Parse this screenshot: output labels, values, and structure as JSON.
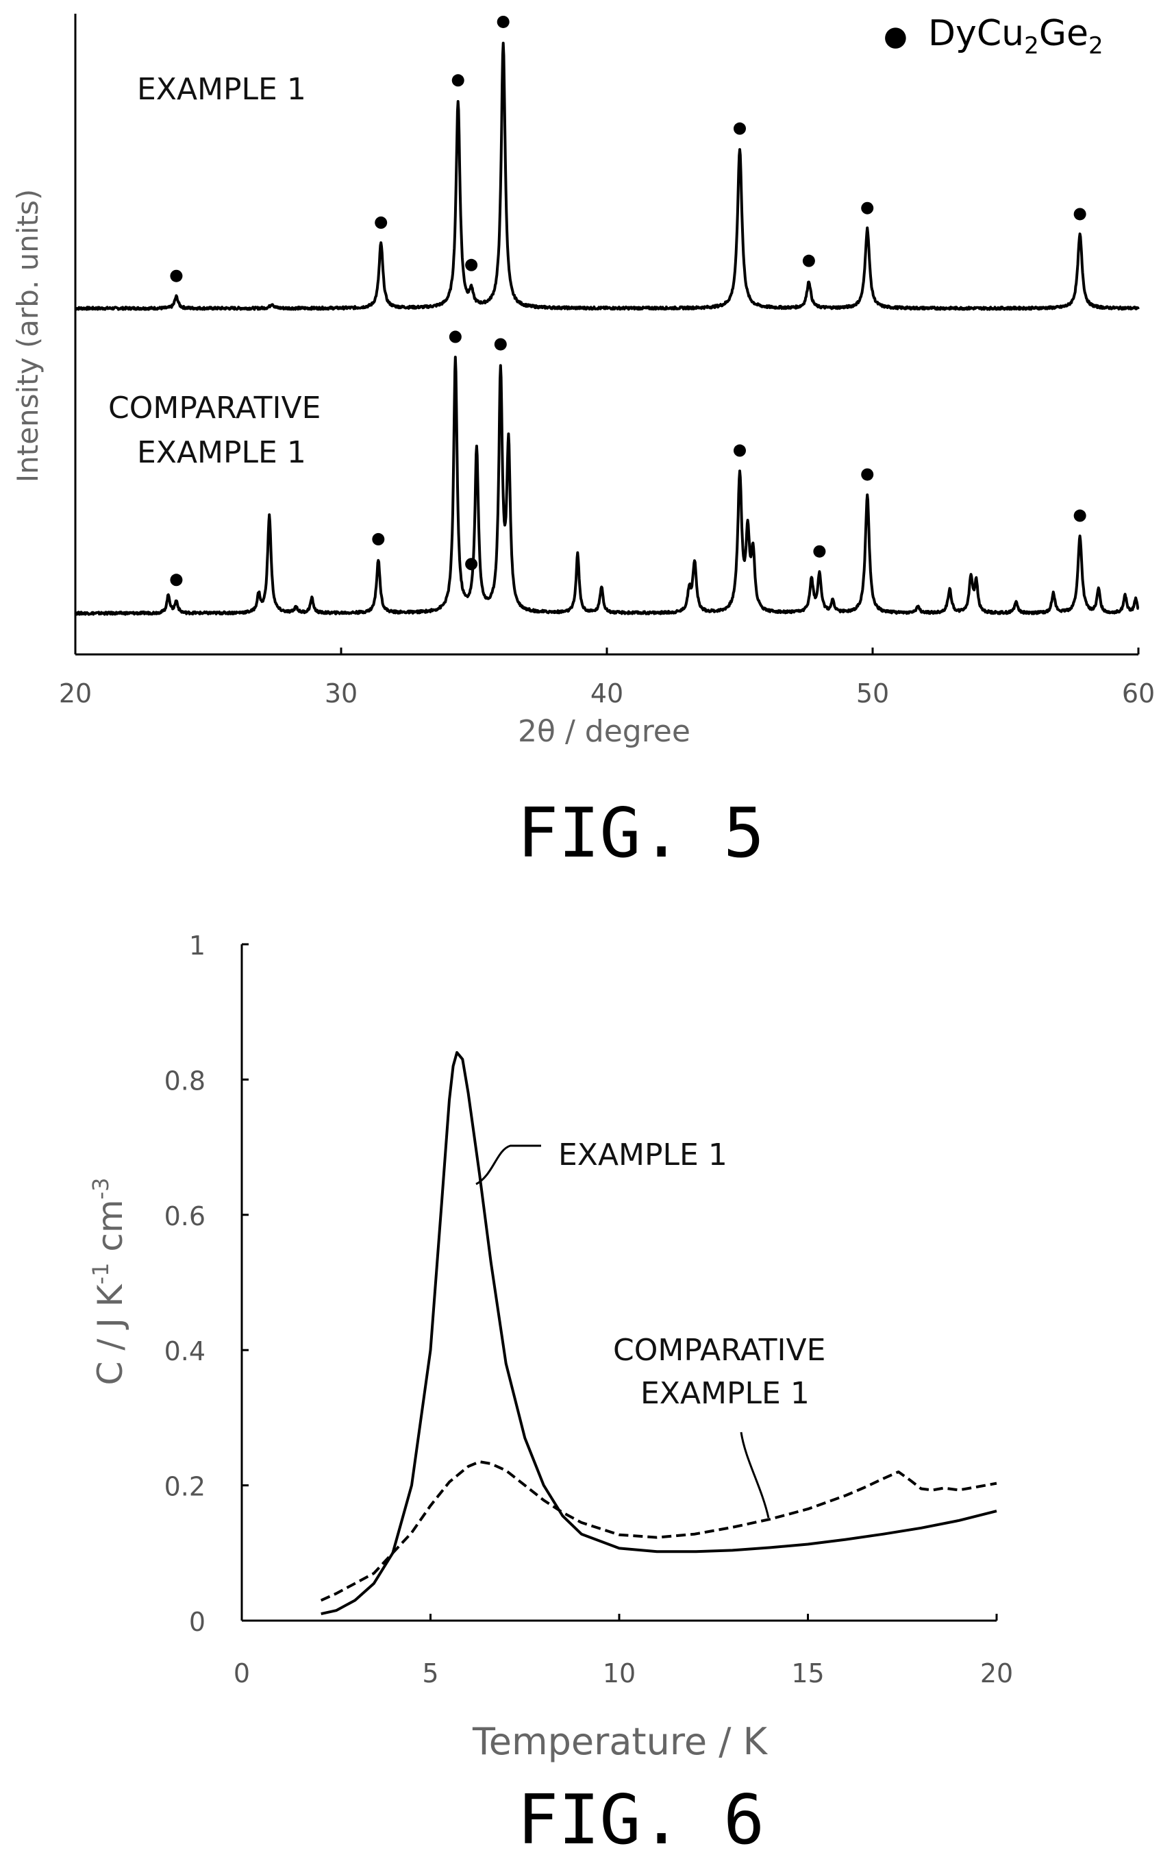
{
  "chart_data": [
    {
      "type": "line",
      "figure_label": "FIG. 5",
      "xlabel": "2θ / degree",
      "ylabel": "Intensity (arb. units)",
      "xlim": [
        20,
        60
      ],
      "xticks": [
        "20",
        "30",
        "40",
        "50",
        "60"
      ],
      "legend": {
        "marker": "●",
        "name": "DyCu",
        "sub1": "2",
        "mid": "Ge",
        "sub2": "2"
      },
      "series": [
        {
          "name": "EXAMPLE 1",
          "baseline": 0,
          "peaks": [
            {
              "x": 23.8,
              "y": 0.04,
              "w": 0.08
            },
            {
              "x": 27.4,
              "y": 0.015,
              "w": 0.08
            },
            {
              "x": 31.5,
              "y": 0.22,
              "w": 0.09
            },
            {
              "x": 34.4,
              "y": 0.7,
              "w": 0.09
            },
            {
              "x": 34.9,
              "y": 0.05,
              "w": 0.08
            },
            {
              "x": 36.1,
              "y": 0.9,
              "w": 0.09
            },
            {
              "x": 45.0,
              "y": 0.54,
              "w": 0.1
            },
            {
              "x": 47.6,
              "y": 0.09,
              "w": 0.09
            },
            {
              "x": 49.8,
              "y": 0.27,
              "w": 0.1
            },
            {
              "x": 57.8,
              "y": 0.25,
              "w": 0.1
            }
          ],
          "marked_peaks": [
            23.8,
            31.5,
            34.4,
            34.9,
            36.1,
            45.0,
            47.6,
            49.8,
            57.8
          ],
          "label": [
            "EXAMPLE 1"
          ]
        },
        {
          "name": "COMPARATIVE EXAMPLE 1",
          "baseline": 0,
          "peaks": [
            {
              "x": 23.5,
              "y": 0.06,
              "w": 0.07
            },
            {
              "x": 23.8,
              "y": 0.04,
              "w": 0.07
            },
            {
              "x": 26.9,
              "y": 0.06,
              "w": 0.07
            },
            {
              "x": 27.3,
              "y": 0.33,
              "w": 0.08
            },
            {
              "x": 28.3,
              "y": 0.02,
              "w": 0.07
            },
            {
              "x": 28.9,
              "y": 0.05,
              "w": 0.07
            },
            {
              "x": 31.4,
              "y": 0.18,
              "w": 0.08
            },
            {
              "x": 34.3,
              "y": 0.86,
              "w": 0.08
            },
            {
              "x": 35.1,
              "y": 0.55,
              "w": 0.08
            },
            {
              "x": 36.0,
              "y": 0.8,
              "w": 0.08
            },
            {
              "x": 36.3,
              "y": 0.55,
              "w": 0.08
            },
            {
              "x": 38.9,
              "y": 0.2,
              "w": 0.07
            },
            {
              "x": 39.8,
              "y": 0.09,
              "w": 0.07
            },
            {
              "x": 43.1,
              "y": 0.07,
              "w": 0.08
            },
            {
              "x": 43.3,
              "y": 0.17,
              "w": 0.08
            },
            {
              "x": 45.0,
              "y": 0.46,
              "w": 0.09
            },
            {
              "x": 45.3,
              "y": 0.25,
              "w": 0.08
            },
            {
              "x": 45.5,
              "y": 0.19,
              "w": 0.08
            },
            {
              "x": 47.7,
              "y": 0.11,
              "w": 0.08
            },
            {
              "x": 48.0,
              "y": 0.13,
              "w": 0.08
            },
            {
              "x": 48.5,
              "y": 0.04,
              "w": 0.07
            },
            {
              "x": 49.8,
              "y": 0.4,
              "w": 0.09
            },
            {
              "x": 51.7,
              "y": 0.02,
              "w": 0.08
            },
            {
              "x": 52.9,
              "y": 0.08,
              "w": 0.08
            },
            {
              "x": 53.7,
              "y": 0.12,
              "w": 0.08
            },
            {
              "x": 53.9,
              "y": 0.1,
              "w": 0.07
            },
            {
              "x": 55.4,
              "y": 0.04,
              "w": 0.07
            },
            {
              "x": 56.8,
              "y": 0.07,
              "w": 0.07
            },
            {
              "x": 57.8,
              "y": 0.26,
              "w": 0.09
            },
            {
              "x": 58.5,
              "y": 0.08,
              "w": 0.07
            },
            {
              "x": 59.5,
              "y": 0.06,
              "w": 0.07
            },
            {
              "x": 59.9,
              "y": 0.05,
              "w": 0.06
            }
          ],
          "marked_peaks": [
            23.8,
            31.4,
            34.3,
            34.9,
            36.0,
            45.0,
            48.0,
            49.8,
            57.8
          ],
          "label": [
            "COMPARATIVE",
            "EXAMPLE 1"
          ]
        }
      ]
    },
    {
      "type": "line",
      "figure_label": "FIG. 6",
      "xlabel": "Temperature / K",
      "ylabel": {
        "main": "C / J K",
        "sup1": "-1",
        "mid": " cm",
        "sup2": "-3"
      },
      "xlim": [
        0,
        20
      ],
      "ylim": [
        0,
        1
      ],
      "xticks": [
        0,
        5,
        10,
        15,
        20
      ],
      "yticks": [
        0,
        0.2,
        0.4,
        0.6,
        0.8,
        1
      ],
      "xtick_labels": [
        "0",
        "5",
        "10",
        "15",
        "20"
      ],
      "ytick_labels": [
        "0",
        "0.2",
        "0.4",
        "0.6",
        "0.8",
        "1"
      ],
      "series": [
        {
          "name": "EXAMPLE 1",
          "style": "solid",
          "label": [
            "EXAMPLE 1"
          ],
          "x": [
            2.1,
            2.5,
            3,
            3.5,
            4,
            4.5,
            5,
            5.3,
            5.5,
            5.6,
            5.7,
            5.85,
            6,
            6.3,
            6.6,
            7,
            7.5,
            8,
            8.5,
            9,
            10,
            11,
            12,
            13,
            14,
            15,
            16,
            17,
            18,
            19,
            20
          ],
          "y": [
            0.01,
            0.015,
            0.03,
            0.055,
            0.1,
            0.2,
            0.4,
            0.62,
            0.77,
            0.82,
            0.84,
            0.83,
            0.78,
            0.66,
            0.53,
            0.38,
            0.27,
            0.2,
            0.155,
            0.128,
            0.107,
            0.102,
            0.102,
            0.104,
            0.108,
            0.113,
            0.12,
            0.128,
            0.137,
            0.148,
            0.162
          ]
        },
        {
          "name": "COMPARATIVE EXAMPLE 1",
          "style": "dashed",
          "label": [
            "COMPARATIVE",
            "EXAMPLE 1"
          ],
          "x": [
            2.1,
            2.5,
            3,
            3.5,
            4,
            4.5,
            5,
            5.5,
            6,
            6.3,
            6.6,
            7,
            7.5,
            8,
            8.5,
            9,
            10,
            11,
            12,
            13,
            14,
            15,
            16,
            16.5,
            17,
            17.4,
            17.7,
            18,
            18.3,
            18.6,
            19,
            19.5,
            20
          ],
          "y": [
            0.03,
            0.04,
            0.055,
            0.07,
            0.1,
            0.13,
            0.17,
            0.205,
            0.228,
            0.235,
            0.232,
            0.222,
            0.2,
            0.178,
            0.16,
            0.145,
            0.127,
            0.123,
            0.128,
            0.138,
            0.15,
            0.165,
            0.185,
            0.197,
            0.21,
            0.22,
            0.208,
            0.195,
            0.193,
            0.196,
            0.193,
            0.198,
            0.203
          ]
        }
      ]
    }
  ]
}
